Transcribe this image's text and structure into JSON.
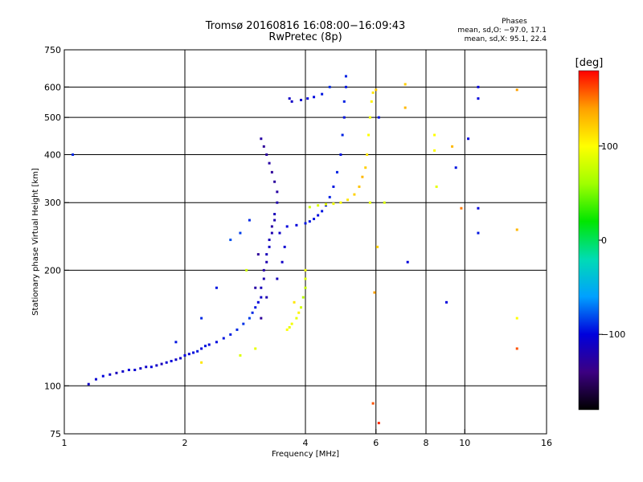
{
  "header": {
    "title_line1": "Tromsø 20160816 16:08:00−16:09:43",
    "title_line2": "RwPretec (8p)"
  },
  "phases_box": {
    "title": "Phases",
    "line1": "mean, sd,O: −97.0, 17.1",
    "line2": "mean, sd,X:  95.1, 22.4"
  },
  "colorbar": {
    "unit_label": "[deg]",
    "ticks": [
      {
        "value": 100,
        "label": "100"
      },
      {
        "value": 0,
        "label": "0"
      },
      {
        "value": -100,
        "label": "−100"
      }
    ],
    "range": [
      -180,
      180
    ],
    "stops": [
      "#000000",
      "#3c0082",
      "#0000dc",
      "#00a0ff",
      "#00dcb4",
      "#00e600",
      "#a0ff00",
      "#ffff00",
      "#ffa000",
      "#ff0000"
    ]
  },
  "chart_data": {
    "type": "scatter",
    "title": "Tromsø 20160816 16:08:00−16:09:43",
    "subtitle": "RwPretec (8p)",
    "xlabel": "Frequency [MHz]",
    "ylabel": "Stationary phase Virtual Height [km]",
    "xscale": "log",
    "yscale": "log",
    "xlim": [
      1,
      16
    ],
    "ylim": [
      75,
      750
    ],
    "x_ticks": [
      {
        "value": 1,
        "label": "1"
      },
      {
        "value": 2,
        "label": "2"
      },
      {
        "value": 4,
        "label": "4"
      },
      {
        "value": 6,
        "label": "6"
      },
      {
        "value": 8,
        "label": "8"
      },
      {
        "value": 10,
        "label": "10"
      },
      {
        "value": 16,
        "label": "16"
      }
    ],
    "y_ticks": [
      {
        "value": 75,
        "label": "75"
      },
      {
        "value": 100,
        "label": "100"
      },
      {
        "value": 200,
        "label": "200"
      },
      {
        "value": 300,
        "label": "300"
      },
      {
        "value": 400,
        "label": "400"
      },
      {
        "value": 500,
        "label": "500"
      },
      {
        "value": 600,
        "label": "600"
      },
      {
        "value": 750,
        "label": "750"
      }
    ],
    "x_grid": [
      2,
      4,
      6,
      8,
      10
    ],
    "y_grid": [
      100,
      200,
      300,
      400,
      500,
      600
    ],
    "grid": true,
    "color_encoding": "phase [deg]",
    "series": [
      {
        "name": "O",
        "phase_mean": -97.0,
        "phase_sd": 17.1,
        "points": [
          [
            1.15,
            101,
            -110
          ],
          [
            1.2,
            104,
            -105
          ],
          [
            1.25,
            106,
            -100
          ],
          [
            1.3,
            107,
            -108
          ],
          [
            1.35,
            108,
            -115
          ],
          [
            1.4,
            109,
            -110
          ],
          [
            1.45,
            110,
            -100
          ],
          [
            1.5,
            110,
            -105
          ],
          [
            1.55,
            111,
            -112
          ],
          [
            1.6,
            112,
            -108
          ],
          [
            1.65,
            112,
            -100
          ],
          [
            1.7,
            113,
            -110
          ],
          [
            1.75,
            114,
            -115
          ],
          [
            1.8,
            115,
            -105
          ],
          [
            1.85,
            116,
            -100
          ],
          [
            1.9,
            117,
            -110
          ],
          [
            1.95,
            118,
            -108
          ],
          [
            2.0,
            120,
            -100
          ],
          [
            2.05,
            121,
            -105
          ],
          [
            2.1,
            122,
            -98
          ],
          [
            2.15,
            123,
            -95
          ],
          [
            2.2,
            125,
            -100
          ],
          [
            2.25,
            127,
            -95
          ],
          [
            2.3,
            128,
            -102
          ],
          [
            2.4,
            130,
            -98
          ],
          [
            2.5,
            133,
            -95
          ],
          [
            2.6,
            136,
            -92
          ],
          [
            2.7,
            140,
            -90
          ],
          [
            2.8,
            145,
            -88
          ],
          [
            2.9,
            150,
            -85
          ],
          [
            2.95,
            155,
            -90
          ],
          [
            3.0,
            160,
            -95
          ],
          [
            3.05,
            165,
            -100
          ],
          [
            3.1,
            170,
            -110
          ],
          [
            3.1,
            180,
            -115
          ],
          [
            3.15,
            190,
            -120
          ],
          [
            3.15,
            200,
            -125
          ],
          [
            3.2,
            210,
            -120
          ],
          [
            3.2,
            220,
            -115
          ],
          [
            3.25,
            230,
            -110
          ],
          [
            3.25,
            240,
            -115
          ],
          [
            3.3,
            250,
            -120
          ],
          [
            3.3,
            260,
            -125
          ],
          [
            3.35,
            270,
            -120
          ],
          [
            3.35,
            280,
            -115
          ],
          [
            3.4,
            300,
            -120
          ],
          [
            3.4,
            320,
            -125
          ],
          [
            3.35,
            340,
            -128
          ],
          [
            3.3,
            360,
            -130
          ],
          [
            3.25,
            380,
            -125
          ],
          [
            3.2,
            400,
            -128
          ],
          [
            3.15,
            420,
            -130
          ],
          [
            3.1,
            440,
            -125
          ],
          [
            3.1,
            150,
            -130
          ],
          [
            3.0,
            180,
            -125
          ],
          [
            3.05,
            220,
            -130
          ],
          [
            3.2,
            170,
            -120
          ],
          [
            3.4,
            190,
            -115
          ],
          [
            3.5,
            210,
            -110
          ],
          [
            3.55,
            230,
            -105
          ],
          [
            3.45,
            250,
            -110
          ],
          [
            3.6,
            260,
            -100
          ],
          [
            3.8,
            262,
            -100
          ],
          [
            4.0,
            265,
            -95
          ],
          [
            4.1,
            268,
            -95
          ],
          [
            4.2,
            272,
            -95
          ],
          [
            4.3,
            278,
            -98
          ],
          [
            4.4,
            285,
            -95
          ],
          [
            4.5,
            295,
            -95
          ],
          [
            4.6,
            310,
            -92
          ],
          [
            4.7,
            330,
            -95
          ],
          [
            4.8,
            360,
            -92
          ],
          [
            4.9,
            400,
            -95
          ],
          [
            4.95,
            450,
            -92
          ],
          [
            5.0,
            500,
            -95
          ],
          [
            5.0,
            550,
            -92
          ],
          [
            5.05,
            600,
            -95
          ],
          [
            5.05,
            640,
            -92
          ],
          [
            4.6,
            600,
            -90
          ],
          [
            4.4,
            575,
            -95
          ],
          [
            4.2,
            565,
            -98
          ],
          [
            4.05,
            560,
            -100
          ],
          [
            3.9,
            555,
            -105
          ],
          [
            3.7,
            550,
            -110
          ],
          [
            3.65,
            560,
            -110
          ],
          [
            2.6,
            240,
            -80
          ],
          [
            2.75,
            250,
            -85
          ],
          [
            2.9,
            270,
            -90
          ],
          [
            2.4,
            180,
            -95
          ],
          [
            2.2,
            150,
            -90
          ],
          [
            1.9,
            130,
            -95
          ],
          [
            1.05,
            400,
            -90
          ],
          [
            10.8,
            600,
            -100
          ],
          [
            10.8,
            560,
            -100
          ],
          [
            9.5,
            370,
            -95
          ],
          [
            10.2,
            440,
            -100
          ],
          [
            10.8,
            250,
            -95
          ],
          [
            10.8,
            290,
            -100
          ],
          [
            9.0,
            165,
            -100
          ],
          [
            7.2,
            210,
            -100
          ],
          [
            6.1,
            500,
            -95
          ]
        ]
      },
      {
        "name": "X",
        "phase_mean": 95.1,
        "phase_sd": 22.4,
        "points": [
          [
            3.6,
            140,
            100
          ],
          [
            3.7,
            145,
            95
          ],
          [
            3.8,
            150,
            90
          ],
          [
            3.9,
            160,
            80
          ],
          [
            3.95,
            170,
            70
          ],
          [
            4.0,
            180,
            75
          ],
          [
            4.0,
            190,
            85
          ],
          [
            4.0,
            200,
            95
          ],
          [
            3.85,
            155,
            105
          ],
          [
            3.75,
            165,
            110
          ],
          [
            3.65,
            142,
            90
          ],
          [
            4.1,
            292,
            80
          ],
          [
            4.3,
            295,
            85
          ],
          [
            4.5,
            297,
            90
          ],
          [
            4.7,
            298,
            95
          ],
          [
            4.9,
            300,
            100
          ],
          [
            5.1,
            305,
            110
          ],
          [
            5.3,
            315,
            120
          ],
          [
            5.45,
            330,
            125
          ],
          [
            5.55,
            350,
            130
          ],
          [
            5.65,
            370,
            120
          ],
          [
            5.7,
            400,
            110
          ],
          [
            5.75,
            450,
            100
          ],
          [
            5.8,
            500,
            95
          ],
          [
            5.85,
            550,
            105
          ],
          [
            5.9,
            580,
            110
          ],
          [
            6.0,
            590,
            125
          ],
          [
            7.1,
            610,
            120
          ],
          [
            7.1,
            530,
            130
          ],
          [
            8.4,
            410,
            100
          ],
          [
            8.4,
            450,
            100
          ],
          [
            9.3,
            420,
            130
          ],
          [
            8.5,
            330,
            90
          ],
          [
            9.8,
            290,
            150
          ],
          [
            13.5,
            590,
            140
          ],
          [
            13.5,
            255,
            130
          ],
          [
            13.5,
            150,
            100
          ],
          [
            13.5,
            125,
            160
          ],
          [
            6.1,
            80,
            170
          ],
          [
            5.9,
            90,
            160
          ],
          [
            3.0,
            125,
            90
          ],
          [
            2.75,
            120,
            85
          ],
          [
            2.2,
            115,
            110
          ],
          [
            2.85,
            200,
            80
          ],
          [
            5.8,
            300,
            90
          ],
          [
            6.3,
            300,
            85
          ],
          [
            6.05,
            230,
            120
          ],
          [
            5.95,
            175,
            140
          ]
        ]
      }
    ]
  }
}
